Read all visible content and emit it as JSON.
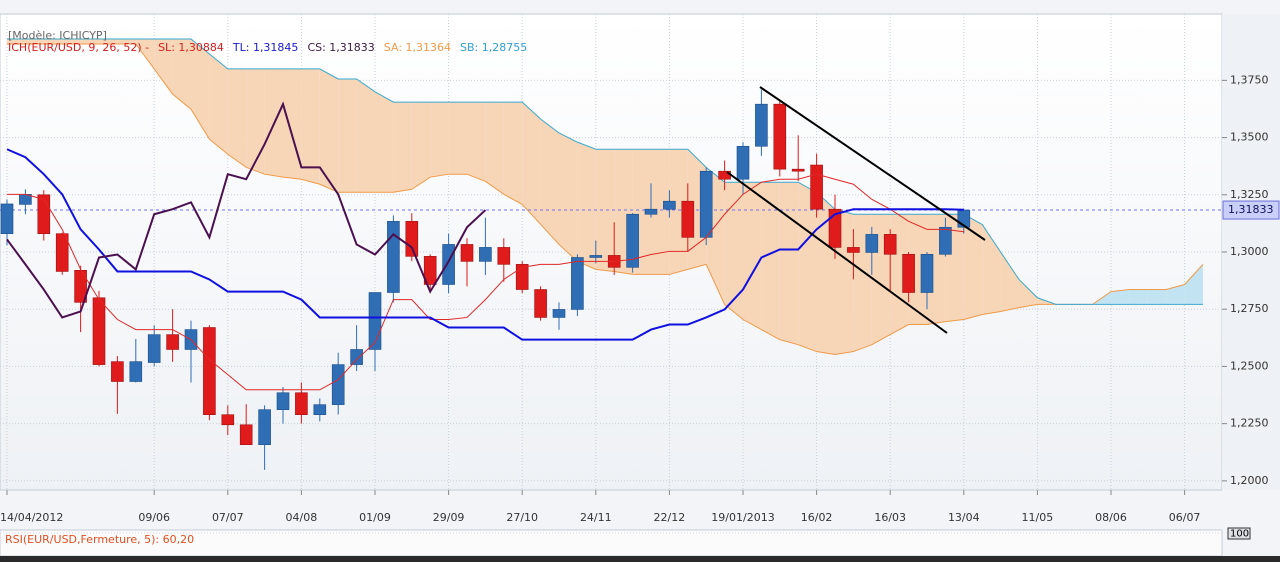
{
  "header": {
    "model": "[Modèle: ICHICYP]",
    "legend": [
      {
        "text": "ICH(EUR/USD, 9, 26, 52) -",
        "color": "#d42020"
      },
      {
        "text": "SL: 1,30884",
        "color": "#d42020"
      },
      {
        "text": "TL: 1,31845",
        "color": "#1a1ad0"
      },
      {
        "text": "CS: 1,31833",
        "color": "#3a2040"
      },
      {
        "text": "SA: 1,31364",
        "color": "#f09a48"
      },
      {
        "text": "SB: 1,28755",
        "color": "#30a0d0"
      }
    ]
  },
  "chart_data": {
    "type": "candlestick",
    "categories": [
      "14/04/2012",
      null,
      null,
      null,
      null,
      null,
      null,
      null,
      "09/06",
      null,
      null,
      null,
      "07/07",
      null,
      null,
      null,
      "04/08",
      null,
      null,
      null,
      "01/09",
      null,
      null,
      null,
      "29/09",
      null,
      null,
      null,
      "27/10",
      null,
      null,
      null,
      "24/11",
      null,
      null,
      null,
      "22/12",
      null,
      null,
      null,
      "19/01/2013",
      null,
      null,
      null,
      "16/02",
      null,
      null,
      null,
      "16/03",
      null,
      null,
      null,
      "13/04",
      null,
      null,
      null,
      "11/05",
      null,
      null,
      null,
      "08/06",
      null,
      null,
      null,
      "06/07",
      null
    ],
    "open": [
      1.308,
      1.3208,
      1.325,
      1.308,
      1.292,
      1.28,
      1.2521,
      1.2434,
      1.2517,
      1.2639,
      1.2574,
      1.267,
      1.2289,
      1.2245,
      1.2158,
      1.2311,
      1.2385,
      1.2289,
      1.2333,
      1.2508,
      1.2574,
      1.2823,
      1.3134,
      1.2981,
      1.2858,
      1.3033,
      1.2959,
      1.302,
      1.2946,
      1.2836,
      1.2714,
      1.2749,
      1.2976,
      1.2985,
      1.2933,
      1.3165,
      1.3187,
      1.3222,
      1.3064,
      1.3353,
      1.3318,
      1.3462,
      1.3646,
      1.3362,
      1.338,
      1.3187,
      1.302,
      1.2998,
      1.3077,
      1.299,
      1.2823,
      1.299,
      1.3108,
      null,
      null,
      null,
      null,
      null,
      null,
      null,
      null,
      null,
      null,
      null,
      null,
      null
    ],
    "high": [
      1.323,
      1.3274,
      1.327,
      1.3085,
      1.294,
      1.283,
      1.2545,
      1.262,
      1.268,
      1.275,
      1.27,
      1.268,
      1.233,
      1.2335,
      1.233,
      1.241,
      1.243,
      1.236,
      1.256,
      1.268,
      1.2823,
      1.316,
      1.317,
      1.299,
      1.308,
      1.306,
      1.315,
      1.306,
      1.296,
      1.285,
      1.278,
      1.299,
      1.305,
      1.313,
      1.317,
      1.33,
      1.327,
      1.33,
      1.337,
      1.34,
      1.348,
      1.371,
      1.366,
      1.351,
      1.343,
      1.325,
      1.31,
      1.311,
      1.31,
      1.3,
      1.3,
      1.315,
      1.319,
      null,
      null,
      null,
      null,
      null,
      null,
      null,
      null,
      null,
      null,
      null,
      null,
      null
    ],
    "low": [
      1.303,
      1.3165,
      1.305,
      1.29,
      1.265,
      1.25,
      1.2293,
      1.243,
      1.25,
      1.252,
      1.243,
      1.2265,
      1.22,
      1.2158,
      1.2048,
      1.225,
      1.225,
      1.226,
      1.229,
      1.248,
      1.248,
      1.278,
      1.296,
      1.282,
      1.282,
      1.285,
      1.29,
      1.287,
      1.282,
      1.27,
      1.266,
      1.272,
      1.295,
      1.29,
      1.291,
      1.315,
      1.315,
      1.3,
      1.303,
      1.327,
      1.325,
      1.342,
      1.333,
      1.331,
      1.315,
      1.297,
      1.288,
      1.29,
      1.283,
      1.278,
      1.275,
      1.298,
      1.308,
      null,
      null,
      null,
      null,
      null,
      null,
      null,
      null,
      null,
      null,
      null,
      null,
      null
    ],
    "close": [
      1.321,
      1.3252,
      1.308,
      1.2915,
      1.278,
      1.2508,
      1.2434,
      1.2521,
      1.2639,
      1.2574,
      1.2661,
      1.2289,
      1.2245,
      1.2158,
      1.2311,
      1.2385,
      1.2289,
      1.2333,
      1.2508,
      1.2574,
      1.2823,
      1.3134,
      1.2981,
      1.2858,
      1.3033,
      1.2959,
      1.302,
      1.2946,
      1.2836,
      1.2714,
      1.2749,
      1.2976,
      1.2985,
      1.2933,
      1.3165,
      1.3187,
      1.3222,
      1.3064,
      1.3353,
      1.3318,
      1.3462,
      1.3646,
      1.3362,
      1.3353,
      1.3187,
      1.302,
      1.2998,
      1.3077,
      1.299,
      1.2823,
      1.299,
      1.3108,
      1.31833,
      null,
      null,
      null,
      null,
      null,
      null,
      null,
      null,
      null,
      null,
      null,
      null,
      null
    ],
    "up_color": "#2f6db5",
    "down_color": "#e01b1b",
    "tenkan": {
      "color": "#e02828",
      "values": [
        1.3252,
        1.3252,
        1.323,
        1.3099,
        1.2924,
        1.2792,
        1.2705,
        1.2661,
        1.2661,
        1.2661,
        1.2617,
        1.253,
        1.2464,
        1.2398,
        1.2398,
        1.2398,
        1.2398,
        1.2398,
        1.2442,
        1.253,
        1.2604,
        1.2792,
        1.2792,
        1.2705,
        1.2705,
        1.2714,
        1.2792,
        1.288,
        1.2933,
        1.2946,
        1.2946,
        1.2959,
        1.2959,
        1.2959,
        1.2968,
        1.2989,
        1.3003,
        1.3003,
        1.3064,
        1.3165,
        1.3252,
        1.3305,
        1.3318,
        1.3318,
        1.334,
        1.3318,
        1.3296,
        1.323,
        1.3187,
        1.3134,
        1.3099,
        1.3099,
        1.30884,
        null,
        null,
        null,
        null,
        null,
        null,
        null,
        null,
        null,
        null,
        null,
        null,
        null
      ]
    },
    "kijun": {
      "color": "#1010e0",
      "values": [
        1.3449,
        1.3414,
        1.334,
        1.3252,
        1.3099,
        1.3011,
        1.2915,
        1.2915,
        1.2915,
        1.2915,
        1.2915,
        1.288,
        1.2827,
        1.2827,
        1.2827,
        1.2827,
        1.2792,
        1.2714,
        1.2714,
        1.2714,
        1.2714,
        1.2714,
        1.2714,
        1.2714,
        1.267,
        1.267,
        1.267,
        1.267,
        1.2617,
        1.2617,
        1.2617,
        1.2617,
        1.2617,
        1.2617,
        1.2617,
        1.2661,
        1.2683,
        1.2683,
        1.2714,
        1.2749,
        1.2836,
        1.2976,
        1.3011,
        1.3011,
        1.3099,
        1.3165,
        1.3187,
        1.3187,
        1.3187,
        1.3187,
        1.3187,
        1.3187,
        1.31845,
        null,
        null,
        null,
        null,
        null,
        null,
        null,
        null,
        null,
        null,
        null,
        null,
        null
      ]
    },
    "chikou": {
      "color": "#4a1050",
      "values": [
        1.3055,
        1.2946,
        1.2836,
        1.2714,
        1.274,
        1.2976,
        1.2989,
        1.2924,
        1.3165,
        1.3187,
        1.3217,
        1.3064,
        1.334,
        1.3318,
        1.3471,
        1.3646,
        1.337,
        1.337,
        1.3252,
        1.3033,
        1.2989,
        1.3077,
        1.302,
        1.2827,
        1.2959,
        1.3108,
        1.31833,
        null,
        null,
        null,
        null,
        null,
        null,
        null,
        null,
        null,
        null,
        null,
        null,
        null,
        null,
        null,
        null,
        null,
        null,
        null,
        null,
        null,
        null,
        null,
        null,
        null,
        null,
        null,
        null,
        null,
        null,
        null,
        null,
        null,
        null,
        null,
        null,
        null,
        null,
        null
      ]
    },
    "senkou_a": {
      "color": "#f09a48",
      "values": [
        1.3909,
        1.3909,
        1.3909,
        1.3909,
        1.3909,
        1.3909,
        1.3909,
        1.3909,
        1.38,
        1.369,
        1.3624,
        1.3493,
        1.3427,
        1.337,
        1.334,
        1.3327,
        1.3318,
        1.3296,
        1.3261,
        1.3261,
        1.3261,
        1.3261,
        1.3274,
        1.3327,
        1.334,
        1.334,
        1.3309,
        1.3252,
        1.3208,
        1.3121,
        1.3033,
        1.2959,
        1.2924,
        1.2915,
        1.2902,
        1.2902,
        1.2902,
        1.2924,
        1.2946,
        1.2771,
        1.2705,
        1.2661,
        1.2617,
        1.2595,
        1.2565,
        1.2552,
        1.2565,
        1.2595,
        1.2639,
        1.2683,
        1.2683,
        1.2696,
        1.2705,
        1.2727,
        1.274,
        1.2757,
        1.2771,
        1.2771,
        1.2771,
        1.2771,
        1.2827,
        1.2836,
        1.2836,
        1.2836,
        1.2858,
        1.2946
      ]
    },
    "senkou_b": {
      "color": "#38a8d0",
      "values": [
        1.3931,
        1.3931,
        1.3931,
        1.3931,
        1.3931,
        1.3931,
        1.3931,
        1.3931,
        1.3931,
        1.3931,
        1.3931,
        1.3865,
        1.38,
        1.38,
        1.38,
        1.38,
        1.38,
        1.38,
        1.3756,
        1.3756,
        1.37,
        1.3655,
        1.3655,
        1.3655,
        1.3655,
        1.3655,
        1.3655,
        1.3655,
        1.3655,
        1.3581,
        1.352,
        1.348,
        1.3449,
        1.3449,
        1.3449,
        1.3449,
        1.3449,
        1.3449,
        1.337,
        1.3305,
        1.3305,
        1.3305,
        1.3305,
        1.3305,
        1.326,
        1.3187,
        1.3165,
        1.3165,
        1.3165,
        1.3165,
        1.3165,
        1.3165,
        1.3165,
        1.312,
        1.3,
        1.288,
        1.28,
        1.2771,
        1.2771,
        1.2771,
        1.2771,
        1.2771,
        1.2771,
        1.2771,
        1.2771,
        1.2771
      ]
    },
    "cloud_colors": {
      "bearish": "#f7d6b8",
      "bullish": "#c2e4f2"
    },
    "ylim": [
      1.196,
      1.404
    ],
    "yticks": [
      {
        "value": 1.2,
        "label": "1,2000"
      },
      {
        "value": 1.225,
        "label": "1,2250"
      },
      {
        "value": 1.25,
        "label": "1,2500"
      },
      {
        "value": 1.275,
        "label": "1,2750"
      },
      {
        "value": 1.3,
        "label": "1,3000"
      },
      {
        "value": 1.325,
        "label": "1,3250"
      },
      {
        "value": 1.35,
        "label": "1,3500"
      },
      {
        "value": 1.375,
        "label": "1,3750"
      }
    ],
    "last_price": {
      "value": 1.31833,
      "label": "1,31833"
    },
    "grid": true
  },
  "rsi": {
    "label": "RSI(EUR/USD,Fermeture, 5): 60,20",
    "ylim": [
      0,
      100
    ],
    "yticks": [
      100
    ]
  }
}
